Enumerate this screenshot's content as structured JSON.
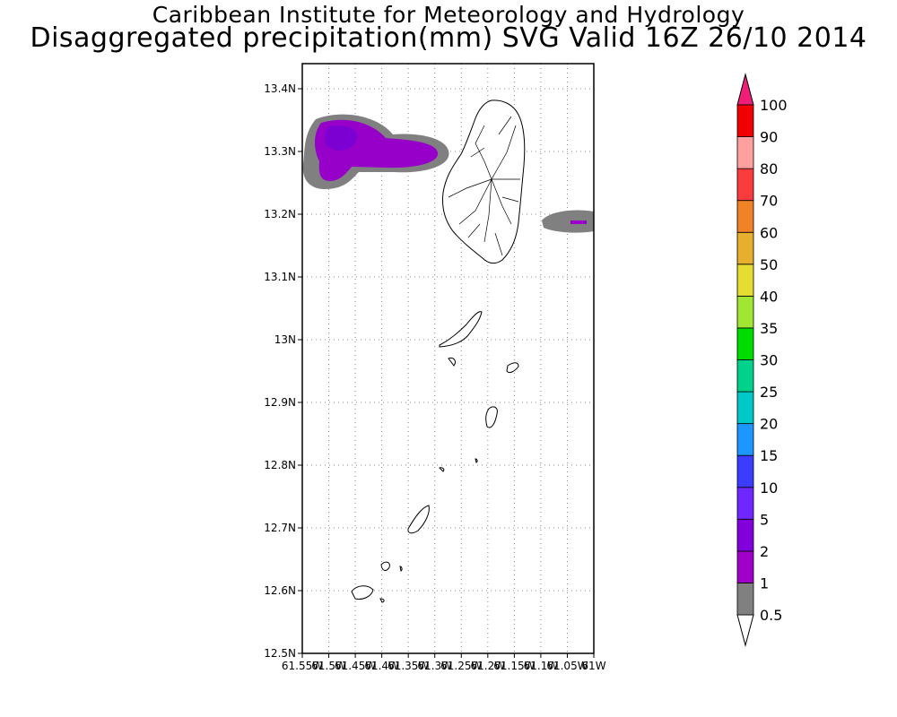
{
  "header": {
    "title_line1": "Caribbean Institute for Meteorology and Hydrology",
    "title_line2": "Disaggregated precipitation(mm) SVG Valid 16Z 26/10 2014"
  },
  "map": {
    "lon_range": [
      -61.55,
      -61.0
    ],
    "lat_range": [
      12.5,
      13.44
    ],
    "lat_ticks": [
      {
        "value": 13.4,
        "label": "13.4N"
      },
      {
        "value": 13.3,
        "label": "13.3N"
      },
      {
        "value": 13.2,
        "label": "13.2N"
      },
      {
        "value": 13.1,
        "label": "13.1N"
      },
      {
        "value": 13.0,
        "label": "13N"
      },
      {
        "value": 12.9,
        "label": "12.9N"
      },
      {
        "value": 12.8,
        "label": "12.8N"
      },
      {
        "value": 12.7,
        "label": "12.7N"
      },
      {
        "value": 12.6,
        "label": "12.6N"
      },
      {
        "value": 12.5,
        "label": "12.5N"
      }
    ],
    "lon_ticks": [
      {
        "value": -61.55,
        "label": "61.55W"
      },
      {
        "value": -61.5,
        "label": "61.5W"
      },
      {
        "value": -61.45,
        "label": "61.45W"
      },
      {
        "value": -61.4,
        "label": "61.4W"
      },
      {
        "value": -61.35,
        "label": "61.35W"
      },
      {
        "value": -61.3,
        "label": "61.3W"
      },
      {
        "value": -61.25,
        "label": "61.25W"
      },
      {
        "value": -61.2,
        "label": "61.2W"
      },
      {
        "value": -61.15,
        "label": "61.15W"
      },
      {
        "value": -61.1,
        "label": "61.1W"
      },
      {
        "value": -61.05,
        "label": "61.05W"
      },
      {
        "value": -61.0,
        "label": "61W"
      }
    ],
    "grid": true,
    "precip_colors": {
      "band_0_5_to_1": "#808080",
      "band_2_to_5": "#9600c8",
      "band_5_to_10": "#7d00d2"
    }
  },
  "legend": {
    "bins": [
      {
        "label": "0.5",
        "color": "#808080"
      },
      {
        "label": "1",
        "color": "#a000c8"
      },
      {
        "label": "2",
        "color": "#8200dc"
      },
      {
        "label": "5",
        "color": "#6e28ff"
      },
      {
        "label": "10",
        "color": "#3c3cff"
      },
      {
        "label": "15",
        "color": "#1e96ff"
      },
      {
        "label": "20",
        "color": "#00c8c8"
      },
      {
        "label": "25",
        "color": "#00d28c"
      },
      {
        "label": "30",
        "color": "#00dc00"
      },
      {
        "label": "35",
        "color": "#a0e632"
      },
      {
        "label": "40",
        "color": "#e6dc32"
      },
      {
        "label": "50",
        "color": "#e6af2d"
      },
      {
        "label": "60",
        "color": "#f08228"
      },
      {
        "label": "70",
        "color": "#fa3c3c"
      },
      {
        "label": "80",
        "color": "#ffa0a0"
      },
      {
        "label": "90",
        "color": "#f00000"
      },
      {
        "label": "100",
        "color": "#e6006e"
      }
    ],
    "low_end_color": "#ffffff",
    "high_end_color": "#f01e78"
  }
}
